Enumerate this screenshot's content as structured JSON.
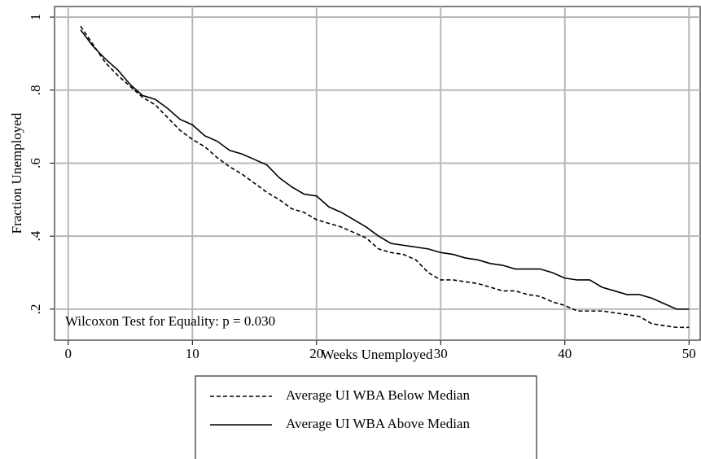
{
  "chart_data": {
    "type": "line",
    "x_label": "Weeks Unemployed",
    "y_label": "Fraction Unemployed",
    "annotation": "Wilcoxon Test for Equality: p = 0.030",
    "x": [
      1,
      2,
      3,
      4,
      5,
      6,
      7,
      8,
      9,
      10,
      11,
      12,
      13,
      14,
      15,
      16,
      17,
      18,
      19,
      20,
      21,
      22,
      23,
      24,
      25,
      26,
      27,
      28,
      29,
      30,
      31,
      32,
      33,
      34,
      35,
      36,
      37,
      38,
      39,
      40,
      41,
      42,
      43,
      44,
      45,
      46,
      47,
      48,
      49,
      50
    ],
    "series": [
      {
        "name": "Average UI WBA Below Median",
        "color": "#000000",
        "linestyle": "dashed",
        "values": [
          0.975,
          0.925,
          0.875,
          0.84,
          0.81,
          0.78,
          0.76,
          0.725,
          0.69,
          0.665,
          0.645,
          0.615,
          0.59,
          0.57,
          0.545,
          0.52,
          0.5,
          0.475,
          0.465,
          0.445,
          0.435,
          0.425,
          0.41,
          0.395,
          0.365,
          0.355,
          0.35,
          0.335,
          0.3,
          0.28,
          0.28,
          0.275,
          0.27,
          0.26,
          0.25,
          0.25,
          0.24,
          0.235,
          0.22,
          0.21,
          0.195,
          0.195,
          0.195,
          0.19,
          0.185,
          0.18,
          0.16,
          0.155,
          0.15,
          0.15
        ]
      },
      {
        "name": "Average UI WBA Above Median",
        "color": "#000000",
        "linestyle": "solid",
        "values": [
          0.965,
          0.92,
          0.885,
          0.855,
          0.815,
          0.785,
          0.775,
          0.75,
          0.72,
          0.705,
          0.675,
          0.66,
          0.635,
          0.625,
          0.61,
          0.595,
          0.56,
          0.535,
          0.515,
          0.51,
          0.48,
          0.465,
          0.445,
          0.425,
          0.4,
          0.38,
          0.375,
          0.37,
          0.365,
          0.355,
          0.35,
          0.34,
          0.335,
          0.325,
          0.32,
          0.31,
          0.31,
          0.31,
          0.3,
          0.285,
          0.28,
          0.28,
          0.26,
          0.25,
          0.24,
          0.24,
          0.23,
          0.215,
          0.2,
          0.2
        ]
      }
    ],
    "xlim": [
      -1.1,
      50.9
    ],
    "xticks": [
      0,
      10,
      20,
      30,
      40,
      50
    ],
    "ylim": [
      0.115,
      1.029
    ],
    "yticks": [
      {
        "value": 0.2,
        "label": ".2"
      },
      {
        "value": 0.4,
        "label": ".4"
      },
      {
        "value": 0.6,
        "label": ".6"
      },
      {
        "value": 0.8,
        "label": ".8"
      },
      1
    ],
    "grid": true,
    "legend": "bottom"
  }
}
